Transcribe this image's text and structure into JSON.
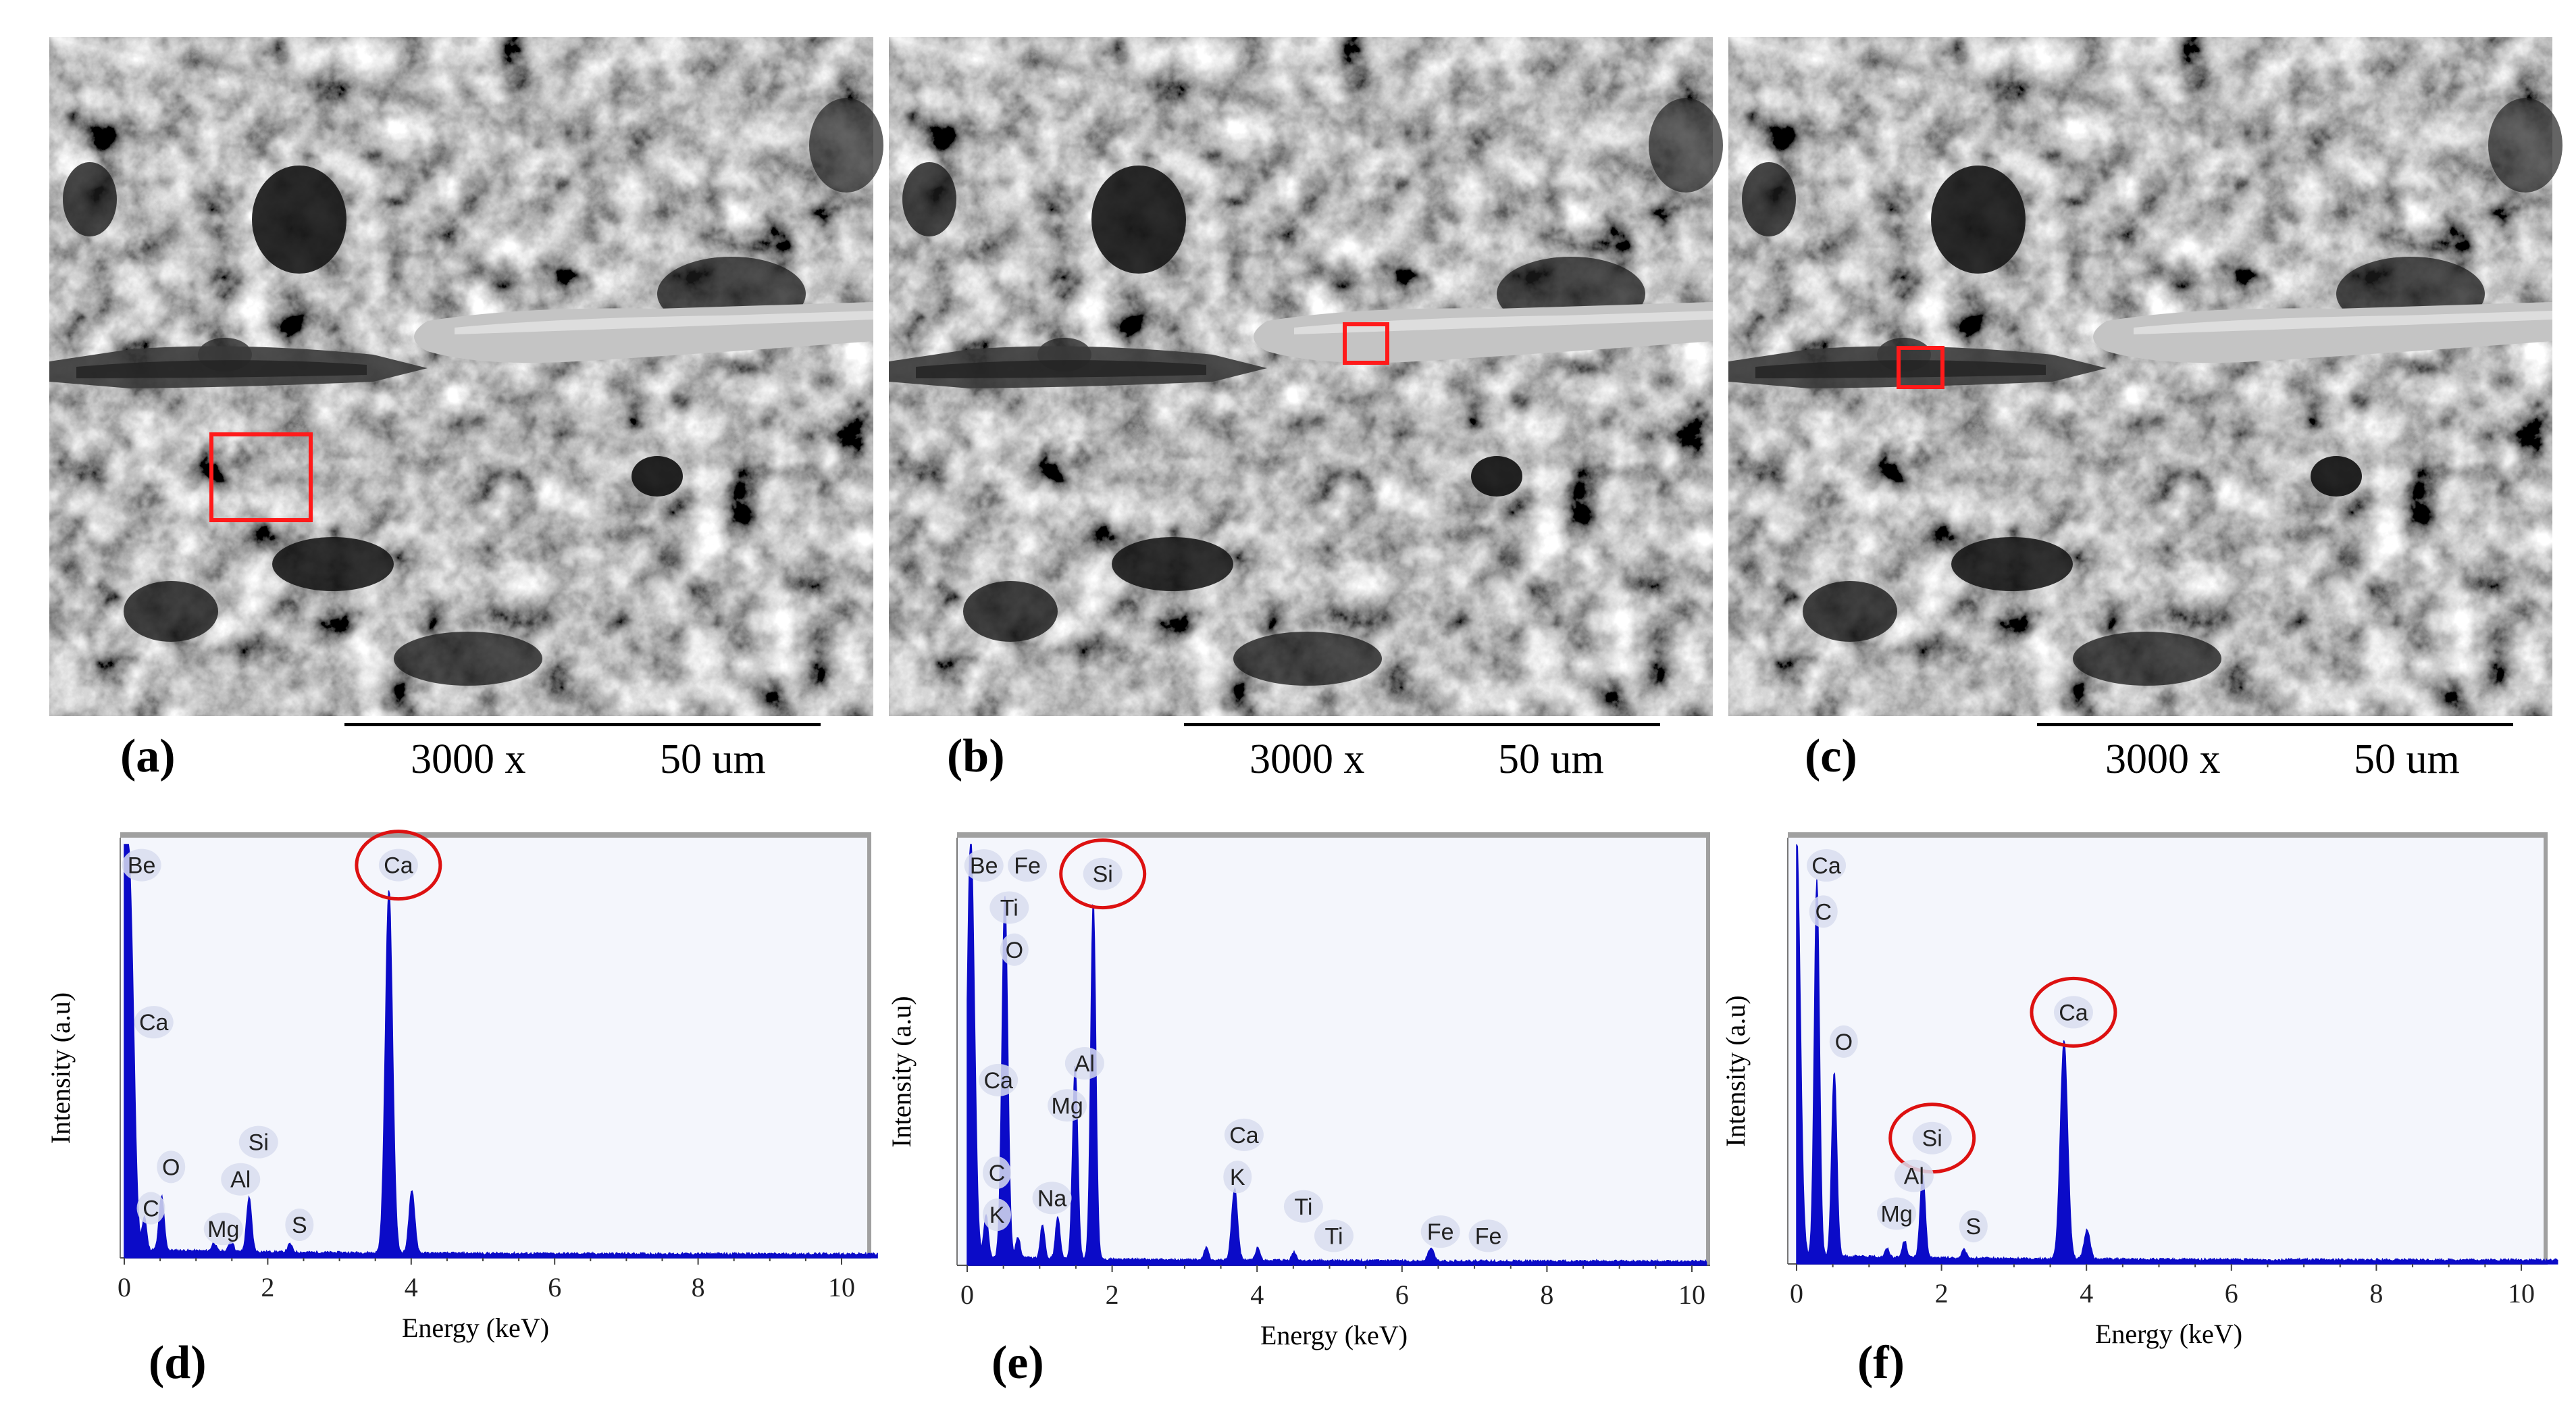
{
  "sem_panels": [
    {
      "panel_label": "(a)",
      "magnification": "3000 x",
      "scale": "50 um",
      "marker": "area"
    },
    {
      "panel_label": "(b)",
      "magnification": "3000 x",
      "scale": "50 um",
      "marker": "fiber"
    },
    {
      "panel_label": "(c)",
      "magnification": "3000 x",
      "scale": "50 um",
      "marker": "interface"
    }
  ],
  "colors": {
    "spectrum_fill": "#0b0bc8",
    "highlight": "#dd1111",
    "plot_bg": "#f4f6fc",
    "frame": "#a0a0a0",
    "peak_badge": "#d8ddef"
  },
  "chart_data": [
    {
      "type": "area",
      "panel_label": "(d)",
      "xlabel": "Energy (keV)",
      "ylabel": "Intensity (a.u)",
      "xlim": [
        0,
        10.5
      ],
      "ylim": [
        0,
        1.0
      ],
      "xticks": [
        0,
        2,
        4,
        6,
        8,
        10
      ],
      "peaks": [
        {
          "energy": 0.0,
          "height": 1.0,
          "width": 0.06
        },
        {
          "energy": 0.1,
          "height": 0.55,
          "width": 0.05
        },
        {
          "energy": 0.28,
          "height": 0.08,
          "width": 0.03
        },
        {
          "energy": 0.52,
          "height": 0.13,
          "width": 0.035
        },
        {
          "energy": 1.25,
          "height": 0.02,
          "width": 0.03
        },
        {
          "energy": 1.49,
          "height": 0.03,
          "width": 0.03
        },
        {
          "energy": 1.74,
          "height": 0.13,
          "width": 0.035
        },
        {
          "energy": 2.31,
          "height": 0.02,
          "width": 0.03
        },
        {
          "energy": 3.69,
          "height": 0.88,
          "width": 0.05
        },
        {
          "energy": 4.01,
          "height": 0.15,
          "width": 0.04
        }
      ],
      "element_labels": [
        {
          "text": "Be",
          "energy": 0.11,
          "level": 0.95
        },
        {
          "text": "Ca",
          "energy": 0.28,
          "level": 0.57
        },
        {
          "text": "O",
          "energy": 0.52,
          "level": 0.22
        },
        {
          "text": "C",
          "energy": 0.24,
          "level": 0.12
        },
        {
          "text": "Si",
          "energy": 1.74,
          "level": 0.28
        },
        {
          "text": "Al",
          "energy": 1.49,
          "level": 0.19
        },
        {
          "text": "Mg",
          "energy": 1.25,
          "level": 0.07
        },
        {
          "text": "S",
          "energy": 2.31,
          "level": 0.08
        },
        {
          "text": "Ca",
          "energy": 3.69,
          "level": 0.95,
          "circled": true
        }
      ]
    },
    {
      "type": "area",
      "panel_label": "(e)",
      "xlabel": "Energy (keV)",
      "ylabel": "Intensity (a.u)",
      "xlim": [
        0,
        10.2
      ],
      "ylim": [
        0,
        1.0
      ],
      "xticks": [
        0,
        2,
        4,
        6,
        8,
        10
      ],
      "peaks": [
        {
          "energy": 0.05,
          "height": 1.0,
          "width": 0.05
        },
        {
          "energy": 0.26,
          "height": 0.1,
          "width": 0.03
        },
        {
          "energy": 0.52,
          "height": 0.86,
          "width": 0.04
        },
        {
          "energy": 0.7,
          "height": 0.05,
          "width": 0.03
        },
        {
          "energy": 1.04,
          "height": 0.08,
          "width": 0.03
        },
        {
          "energy": 1.25,
          "height": 0.1,
          "width": 0.03
        },
        {
          "energy": 1.49,
          "height": 0.46,
          "width": 0.035
        },
        {
          "energy": 1.74,
          "height": 0.85,
          "width": 0.035
        },
        {
          "energy": 3.3,
          "height": 0.03,
          "width": 0.03
        },
        {
          "energy": 3.69,
          "height": 0.17,
          "width": 0.04
        },
        {
          "energy": 4.01,
          "height": 0.03,
          "width": 0.03
        },
        {
          "energy": 4.51,
          "height": 0.02,
          "width": 0.03
        },
        {
          "energy": 6.4,
          "height": 0.03,
          "width": 0.04
        }
      ],
      "element_labels": [
        {
          "text": "Be",
          "energy": 0.1,
          "level": 0.95
        },
        {
          "text": "Fe",
          "energy": 0.7,
          "level": 0.95
        },
        {
          "text": "Ti",
          "energy": 0.45,
          "level": 0.85
        },
        {
          "text": "O",
          "energy": 0.52,
          "level": 0.75
        },
        {
          "text": "Si",
          "energy": 1.74,
          "level": 0.93,
          "circled": true
        },
        {
          "text": "Al",
          "energy": 1.49,
          "level": 0.48
        },
        {
          "text": "Mg",
          "energy": 1.25,
          "level": 0.38
        },
        {
          "text": "Ca",
          "energy": 0.3,
          "level": 0.44
        },
        {
          "text": "C",
          "energy": 0.28,
          "level": 0.22
        },
        {
          "text": "K",
          "energy": 0.28,
          "level": 0.12
        },
        {
          "text": "Na",
          "energy": 1.04,
          "level": 0.16
        },
        {
          "text": "Ca",
          "energy": 3.69,
          "level": 0.31
        },
        {
          "text": "K",
          "energy": 3.6,
          "level": 0.21
        },
        {
          "text": "Ti",
          "energy": 4.51,
          "level": 0.14
        },
        {
          "text": "Ti",
          "energy": 4.93,
          "level": 0.07
        },
        {
          "text": "Fe",
          "energy": 6.4,
          "level": 0.08
        },
        {
          "text": "Fe",
          "energy": 7.06,
          "level": 0.07
        }
      ]
    },
    {
      "type": "area",
      "panel_label": "(f)",
      "xlabel": "Energy (keV)",
      "ylabel": "Intensity (a.u)",
      "xlim": [
        0,
        10.5
      ],
      "ylim": [
        0,
        1.0
      ],
      "xticks": [
        0,
        2,
        4,
        6,
        8,
        10
      ],
      "peaks": [
        {
          "energy": 0.0,
          "height": 1.0,
          "width": 0.05
        },
        {
          "energy": 0.28,
          "height": 0.9,
          "width": 0.035
        },
        {
          "energy": 0.52,
          "height": 0.44,
          "width": 0.035
        },
        {
          "energy": 1.25,
          "height": 0.02,
          "width": 0.03
        },
        {
          "energy": 1.49,
          "height": 0.04,
          "width": 0.03
        },
        {
          "energy": 1.74,
          "height": 0.2,
          "width": 0.035
        },
        {
          "energy": 2.31,
          "height": 0.02,
          "width": 0.03
        },
        {
          "energy": 3.69,
          "height": 0.52,
          "width": 0.05
        },
        {
          "energy": 4.01,
          "height": 0.07,
          "width": 0.04
        }
      ],
      "element_labels": [
        {
          "text": "Ca",
          "energy": 0.28,
          "level": 0.95
        },
        {
          "text": "C",
          "energy": 0.24,
          "level": 0.84
        },
        {
          "text": "O",
          "energy": 0.52,
          "level": 0.53
        },
        {
          "text": "Si",
          "energy": 1.74,
          "level": 0.3,
          "circled": true
        },
        {
          "text": "Al",
          "energy": 1.49,
          "level": 0.21
        },
        {
          "text": "Mg",
          "energy": 1.25,
          "level": 0.12
        },
        {
          "text": "S",
          "energy": 2.31,
          "level": 0.09
        },
        {
          "text": "Ca",
          "energy": 3.69,
          "level": 0.6,
          "circled": true
        }
      ]
    }
  ]
}
